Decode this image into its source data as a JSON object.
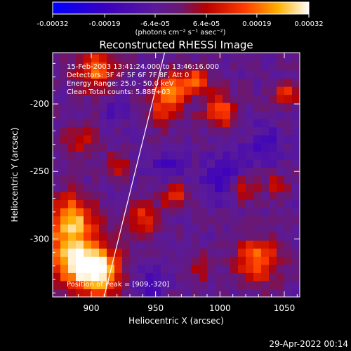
{
  "chart_data": {
    "type": "heatmap",
    "title": "Reconstructed RHESSI Image",
    "xlabel": "Heliocentric X (arcsec)",
    "ylabel": "Heliocentric Y (arcsec)",
    "xlim": [
      870,
      1062
    ],
    "ylim": [
      -343,
      -162
    ],
    "x_ticks": [
      900,
      950,
      1000,
      1050
    ],
    "y_ticks": [
      -200,
      -250,
      -300
    ],
    "x_tick_labels": [
      "900",
      "950",
      "1000",
      "1050"
    ],
    "y_tick_labels": [
      "-200",
      "-250",
      "-300"
    ],
    "colorbar": {
      "range": [
        -0.00032,
        0.00032
      ],
      "tick_values": [
        -0.00032,
        -0.00019,
        -6.4e-05,
        6.4e-05,
        0.00019,
        0.00032
      ],
      "tick_labels": [
        "-0.00032",
        "-0.00019",
        "-6.4e-05",
        "6.4e-05",
        "0.00019",
        "0.00032"
      ],
      "unit_label": "(photons cm⁻² s⁻¹ asec⁻²)"
    },
    "annotations": [
      "15-Feb-2003 13:41:24.000 to 13:46:16.000",
      "Detectors: 3F 4F 5F 6F 7F 8F, Att 0",
      "Energy Range: 25.0 - 50.0 keV",
      "Clean    Total counts: 5.88E+03"
    ],
    "peak_label": "Position of Peak = [909,-320]",
    "limb_line": {
      "x": [
        910,
        957
      ],
      "y": [
        -343,
        -162
      ]
    },
    "hot_spots": [
      {
        "x": 885,
        "y": -310,
        "r": 22,
        "v": 0.0003
      },
      {
        "x": 905,
        "y": -325,
        "r": 18,
        "v": 0.00032
      },
      {
        "x": 885,
        "y": -282,
        "r": 15,
        "v": 0.00024
      },
      {
        "x": 903,
        "y": -174,
        "r": 15,
        "v": 0.00022
      },
      {
        "x": 962,
        "y": -190,
        "r": 13,
        "v": 0.00024
      },
      {
        "x": 982,
        "y": -182,
        "r": 10,
        "v": 0.00018
      },
      {
        "x": 1000,
        "y": -205,
        "r": 13,
        "v": 0.0002
      },
      {
        "x": 940,
        "y": -285,
        "r": 13,
        "v": 0.00016
      },
      {
        "x": 955,
        "y": -208,
        "r": 10,
        "v": 0.00016
      },
      {
        "x": 1018,
        "y": -262,
        "r": 11,
        "v": 0.00018
      },
      {
        "x": 1030,
        "y": -315,
        "r": 16,
        "v": 0.00024
      },
      {
        "x": 1045,
        "y": -260,
        "r": 8,
        "v": 0.00014
      },
      {
        "x": 1052,
        "y": -192,
        "r": 9,
        "v": 0.00016
      },
      {
        "x": 965,
        "y": -268,
        "r": 10,
        "v": 0.00016
      },
      {
        "x": 985,
        "y": -320,
        "r": 9,
        "v": 0.00013
      },
      {
        "x": 920,
        "y": -245,
        "r": 9,
        "v": 0.00012
      },
      {
        "x": 890,
        "y": -225,
        "r": 12,
        "v": 0.00013
      }
    ],
    "cold_spots": [
      {
        "x": 1005,
        "y": -255,
        "r": 18,
        "v": -0.00014
      },
      {
        "x": 960,
        "y": -245,
        "r": 12,
        "v": -0.00012
      },
      {
        "x": 1035,
        "y": -230,
        "r": 14,
        "v": -0.00012
      },
      {
        "x": 945,
        "y": -335,
        "r": 12,
        "v": -0.0001
      },
      {
        "x": 920,
        "y": -205,
        "r": 10,
        "v": -8e-05
      }
    ]
  },
  "footer": {
    "timestamp": "29-Apr-2022 00:14"
  }
}
